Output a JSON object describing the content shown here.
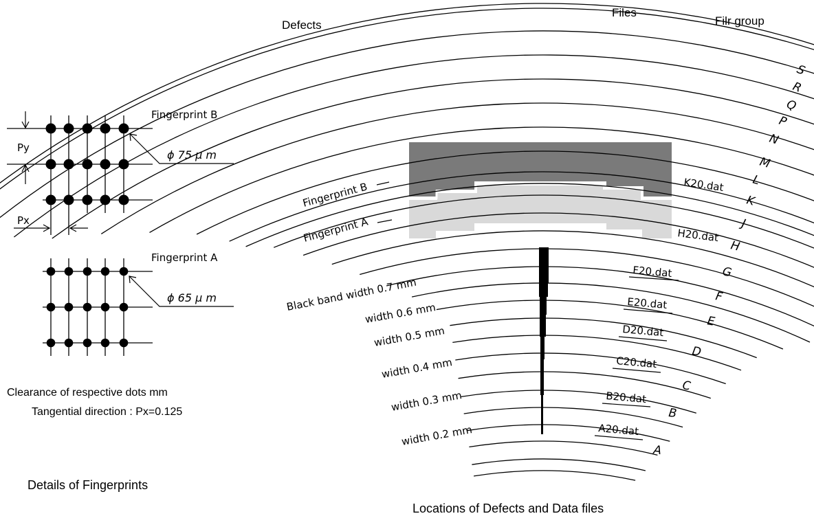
{
  "left_panel": {
    "fingerprint_b_label": "Fingerprint B",
    "fingerprint_b_diameter": "ϕ 75 μ m",
    "fingerprint_a_label": "Fingerprint A",
    "fingerprint_a_diameter": "ϕ 65 μ m",
    "py_label": "Py",
    "px_label": "Px",
    "clearance_line1": "Clearance of respective dots mm",
    "clearance_line2": "Tangential direction : Px=0.125",
    "caption": "Details of Fingerprints"
  },
  "right_panel": {
    "header_defects": "Defects",
    "header_files": "Files",
    "header_group": "Filr group",
    "group_letters": [
      "S",
      "R",
      "Q",
      "P",
      "N",
      "M",
      "L",
      "K",
      "J",
      "H",
      "G",
      "F",
      "E",
      "D",
      "C",
      "B",
      "A"
    ],
    "fingerprint_b_label": "Fingerprint B",
    "fingerprint_a_label": "Fingerprint A",
    "file_labels": [
      "K20.dat",
      "H20.dat",
      "F20.dat",
      "E20.dat",
      "D20.dat",
      "C20.dat",
      "B20.dat",
      "A20.dat"
    ],
    "width_labels": [
      "Black band width 0.7 mm",
      "width 0.6 mm",
      "width 0.5 mm",
      "width 0.4 mm",
      "width 0.3 mm",
      "width 0.2 mm"
    ],
    "caption": "Locations of Defects and Data files"
  },
  "colors": {
    "fingerprint_b_fill": "#7a7a7a",
    "fingerprint_a_fill": "#d9d9d9",
    "ink": "#000000"
  }
}
